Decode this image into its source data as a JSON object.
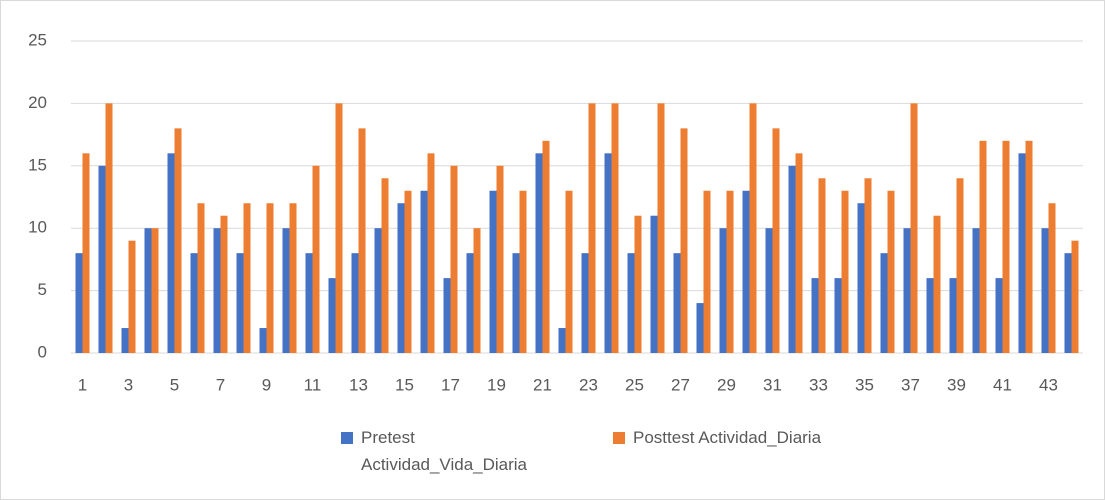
{
  "chart_data": {
    "type": "bar",
    "categories": [
      1,
      null,
      3,
      null,
      5,
      null,
      7,
      null,
      9,
      null,
      11,
      null,
      13,
      null,
      15,
      null,
      17,
      null,
      19,
      null,
      21,
      null,
      23,
      null,
      25,
      null,
      27,
      null,
      29,
      null,
      31,
      null,
      33,
      null,
      35,
      null,
      37,
      null,
      39,
      null,
      41,
      null,
      43,
      null
    ],
    "series": [
      {
        "name": "Pretest Actividad_Vida_Diaria",
        "color": "#4472c4",
        "values": [
          8,
          15,
          2,
          10,
          16,
          8,
          10,
          8,
          2,
          10,
          8,
          6,
          8,
          10,
          12,
          13,
          6,
          8,
          13,
          8,
          16,
          2,
          8,
          16,
          8,
          11,
          8,
          4,
          10,
          13,
          10,
          15,
          6,
          6,
          12,
          8,
          10,
          6,
          6,
          10,
          6,
          16,
          10,
          8
        ]
      },
      {
        "name": "Posttest Actividad_Diaria",
        "color": "#ed7d31",
        "values": [
          16,
          20,
          9,
          10,
          18,
          12,
          11,
          12,
          12,
          12,
          15,
          20,
          18,
          14,
          13,
          16,
          15,
          10,
          15,
          13,
          17,
          13,
          20,
          20,
          11,
          20,
          18,
          13,
          13,
          20,
          18,
          16,
          14,
          13,
          14,
          13,
          20,
          11,
          14,
          17,
          17,
          17,
          12,
          9
        ]
      }
    ],
    "ylim": [
      0,
      25
    ],
    "yticks": [
      0,
      5,
      10,
      15,
      20,
      25
    ],
    "grid": true,
    "legend": "bottom"
  }
}
